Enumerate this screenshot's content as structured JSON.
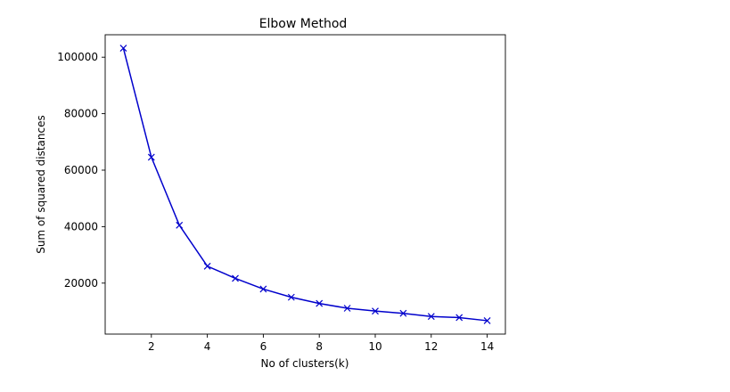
{
  "chart_data": {
    "type": "line",
    "title": "Elbow Method",
    "xlabel": "No of clusters(k)",
    "ylabel": "Sum of squared distances",
    "x": [
      1,
      2,
      3,
      4,
      5,
      6,
      7,
      8,
      9,
      10,
      11,
      12,
      13,
      14
    ],
    "series": [
      {
        "values": [
          103200,
          64600,
          40500,
          26000,
          21700,
          17900,
          15000,
          12800,
          11100,
          10100,
          9300,
          8200,
          7800,
          6700
        ],
        "color": "#0000cc",
        "marker": "x"
      }
    ],
    "xlim": [
      0.35,
      14.65
    ],
    "ylim": [
      1950,
      107950
    ],
    "xticks": [
      2,
      4,
      6,
      8,
      10,
      12,
      14
    ],
    "xtick_labels": [
      "2",
      "4",
      "6",
      "8",
      "10",
      "12",
      "14"
    ],
    "yticks": [
      20000,
      40000,
      60000,
      80000,
      100000
    ],
    "ytick_labels": [
      "20000",
      "40000",
      "60000",
      "80000",
      "100000"
    ],
    "grid": false,
    "legend": "none"
  }
}
